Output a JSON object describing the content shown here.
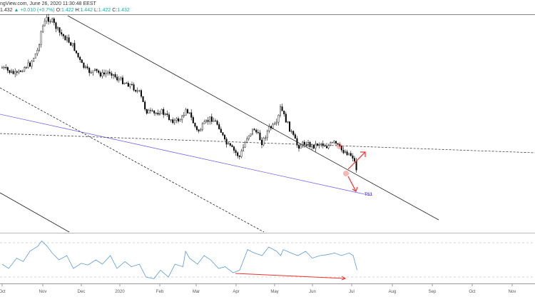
{
  "header": {
    "source_line": "ngView.com, June 26, 2020 11:30:48 EEST",
    "last": "1.432",
    "change_icon": "triangle-up-icon",
    "change": "+0.010 (+0.7%)",
    "o_label": "O:",
    "o": "1.422",
    "h_label": "H:",
    "h": "1.442",
    "l_label": "L:",
    "l": "1.422",
    "c_label": "C:",
    "c": "1.432"
  },
  "colors": {
    "up": "#26a69a",
    "candle": "#000000",
    "trend_blue": "#7b68ee",
    "rsi": "#5b9bd5",
    "annotation": "#f23030"
  },
  "annotation_label": "TS1",
  "chart_data": {
    "type": "candlestick",
    "x_ticks": [
      "Oct",
      "Nov",
      "Dec",
      "2020",
      "Feb",
      "Mar",
      "Apr",
      "May",
      "Jun",
      "Jul",
      "Aug",
      "Sep",
      "Oct",
      "Nov"
    ],
    "closes": {
      "dates": [
        "2019-10-01",
        "2019-10-06",
        "2019-10-12",
        "2019-10-17",
        "2019-10-22",
        "2019-10-28",
        "2019-10-31",
        "2019-11-04",
        "2019-11-08",
        "2019-11-13",
        "2019-11-19",
        "2019-11-24",
        "2019-11-30",
        "2019-12-05",
        "2019-12-11",
        "2019-12-16",
        "2019-12-22",
        "2019-12-27",
        "2020-01-02",
        "2020-01-07",
        "2020-01-13",
        "2020-01-18",
        "2020-01-24",
        "2020-01-29",
        "2020-02-04",
        "2020-02-09",
        "2020-02-15",
        "2020-02-17",
        "2020-02-20",
        "2020-02-26",
        "2020-03-02",
        "2020-03-07",
        "2020-03-13",
        "2020-03-18",
        "2020-03-24",
        "2020-03-29",
        "2020-04-04",
        "2020-04-09",
        "2020-04-15",
        "2020-04-20",
        "2020-04-26",
        "2020-04-29",
        "2020-05-01",
        "2020-05-07",
        "2020-05-12",
        "2020-05-18",
        "2020-05-23",
        "2020-05-29",
        "2020-06-03",
        "2020-06-09",
        "2020-06-14",
        "2020-06-20",
        "2020-06-23",
        "2020-06-26"
      ],
      "values": [
        1.548,
        1.544,
        1.54,
        1.548,
        1.552,
        1.568,
        1.592,
        1.604,
        1.6,
        1.588,
        1.58,
        1.572,
        1.552,
        1.544,
        1.544,
        1.54,
        1.544,
        1.536,
        1.532,
        1.528,
        1.52,
        1.5,
        1.496,
        1.5,
        1.492,
        1.488,
        1.492,
        1.504,
        1.496,
        1.476,
        1.484,
        1.492,
        1.484,
        1.464,
        1.456,
        1.448,
        1.472,
        1.48,
        1.464,
        1.48,
        1.484,
        1.504,
        1.496,
        1.476,
        1.46,
        1.464,
        1.46,
        1.464,
        1.46,
        1.464,
        1.456,
        1.452,
        1.448,
        1.432
      ]
    },
    "rsi": {
      "values": [
        45,
        40,
        52,
        48,
        60,
        66,
        72,
        66,
        58,
        50,
        55,
        40,
        46,
        44,
        50,
        45,
        55,
        40,
        48,
        42,
        45,
        30,
        28,
        38,
        30,
        45,
        42,
        60,
        52,
        45,
        55,
        50,
        40,
        42,
        35,
        38,
        62,
        58,
        55,
        65,
        60,
        55,
        62,
        58,
        55,
        60,
        52,
        55,
        56,
        58,
        55,
        58,
        55,
        38
      ],
      "levels": [
        70,
        30
      ]
    },
    "annotations": {
      "label": "TS1",
      "rsi_divergence": "down",
      "price_scenarios": [
        "up",
        "down"
      ]
    }
  }
}
